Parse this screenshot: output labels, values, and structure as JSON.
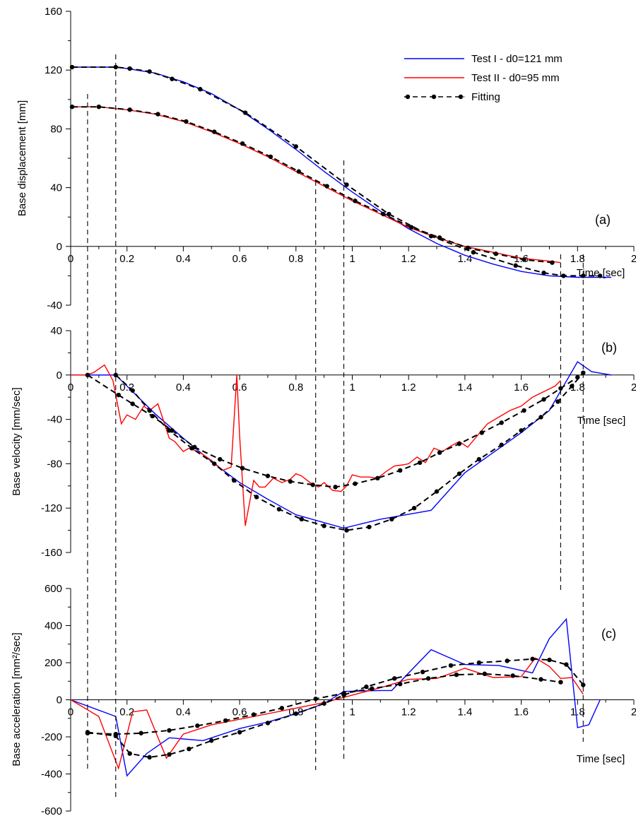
{
  "colors": {
    "test1": "#0000ff",
    "test2": "#ff0000",
    "fitting": "#000000"
  },
  "legend": [
    {
      "label": "Test I - d0=121 mm",
      "color": "#0000ff",
      "style": "solid"
    },
    {
      "label": "Test II - d0=95 mm",
      "color": "#ff0000",
      "style": "solid"
    },
    {
      "label": "Fitting",
      "color": "#000000",
      "style": "dashed-dots"
    }
  ],
  "event_times": [
    0.06,
    0.16,
    0.87,
    0.97,
    1.74,
    1.82
  ],
  "chart_data": [
    {
      "type": "line",
      "panel": "(a)",
      "ylabel": "Base displacement [mm]",
      "xlabel": "Time [sec]",
      "xlim": [
        0,
        2
      ],
      "ylim": [
        -40,
        160
      ],
      "xticks": [
        "0",
        "0.2",
        "0.4",
        "0.6",
        "0.8",
        "1",
        "1.2",
        "1.4",
        "1.6",
        "1.8",
        "2"
      ],
      "yticks": [
        "-40",
        "0",
        "40",
        "80",
        "120",
        "160"
      ],
      "series": [
        {
          "name": "Test I - d0=121 mm",
          "color": "#0000ff",
          "x": [
            0,
            0.16,
            0.2,
            0.3,
            0.4,
            0.5,
            0.6,
            0.7,
            0.8,
            0.9,
            1.0,
            1.1,
            1.2,
            1.3,
            1.4,
            1.5,
            1.6,
            1.7,
            1.8,
            1.9,
            1.92
          ],
          "y": [
            122,
            122,
            121,
            118,
            112,
            104,
            93,
            80,
            66,
            51,
            37,
            24,
            12,
            2,
            -6,
            -12,
            -17,
            -20,
            -21,
            -21,
            -21
          ]
        },
        {
          "name": "Test II - d0=95 mm",
          "color": "#ff0000",
          "x": [
            0,
            0.06,
            0.1,
            0.2,
            0.3,
            0.4,
            0.5,
            0.6,
            0.7,
            0.8,
            0.9,
            1.0,
            1.1,
            1.2,
            1.3,
            1.4,
            1.5,
            1.6,
            1.7,
            1.74
          ],
          "y": [
            95,
            95,
            95,
            93,
            90,
            85,
            78,
            70,
            61,
            51,
            41,
            31,
            22,
            13,
            6,
            0,
            -4,
            -8,
            -10,
            -11
          ]
        },
        {
          "name": "Fitting",
          "color": "#000000",
          "dashed": true,
          "x": [
            0.005,
            0.16,
            0.21,
            0.28,
            0.36,
            0.46,
            0.62,
            0.8,
            0.98,
            1.13,
            1.28,
            1.43,
            1.58,
            1.68,
            1.75,
            1.82,
            1.88
          ],
          "y": [
            122,
            122,
            121,
            119,
            114,
            107,
            91,
            68,
            42,
            22,
            7,
            -4,
            -13,
            -18,
            -20,
            -20,
            -20
          ]
        },
        {
          "name": "Fitting",
          "color": "#000000",
          "dashed": true,
          "x": [
            0.005,
            0.1,
            0.21,
            0.31,
            0.41,
            0.51,
            0.61,
            0.71,
            0.81,
            0.91,
            1.01,
            1.11,
            1.21,
            1.31,
            1.41,
            1.51,
            1.61,
            1.71
          ],
          "y": [
            95,
            95,
            93,
            90,
            85,
            78,
            70,
            61,
            51,
            41,
            31,
            22,
            13,
            6,
            -1,
            -5,
            -9,
            -11
          ]
        }
      ]
    },
    {
      "type": "line",
      "panel": "(b)",
      "ylabel": "Base velocity [mm/sec]",
      "xlabel": "Time [sec]",
      "xlim": [
        0,
        2
      ],
      "ylim": [
        -160,
        40
      ],
      "xticks": [
        "0",
        "0.2",
        "0.4",
        "0.6",
        "0.8",
        "1",
        "1.2",
        "1.4",
        "1.6",
        "1.8",
        "2"
      ],
      "yticks": [
        "-160",
        "-120",
        "-80",
        "-40",
        "0",
        "40"
      ],
      "series": [
        {
          "name": "Test I - d0=121 mm",
          "color": "#0000ff",
          "x": [
            0,
            0.16,
            0.22,
            0.3,
            0.4,
            0.5,
            0.6,
            0.7,
            0.8,
            0.97,
            1.1,
            1.28,
            1.4,
            1.5,
            1.6,
            1.7,
            1.8,
            1.85,
            1.92
          ],
          "y": [
            0,
            0,
            -15,
            -35,
            -57,
            -78,
            -97,
            -112,
            -126,
            -138,
            -130,
            -122,
            -88,
            -70,
            -52,
            -32,
            12,
            3,
            0
          ]
        },
        {
          "name": "Test II - d0=95 mm",
          "color": "#ff0000",
          "x": [
            0,
            0.05,
            0.08,
            0.12,
            0.15,
            0.18,
            0.2,
            0.23,
            0.26,
            0.28,
            0.31,
            0.35,
            0.37,
            0.4,
            0.42,
            0.46,
            0.5,
            0.54,
            0.57,
            0.59,
            0.6,
            0.62,
            0.65,
            0.67,
            0.69,
            0.72,
            0.75,
            0.78,
            0.8,
            0.82,
            0.85,
            0.88,
            0.9,
            0.93,
            0.96,
            0.98,
            1.0,
            1.03,
            1.06,
            1.09,
            1.12,
            1.15,
            1.18,
            1.2,
            1.23,
            1.26,
            1.29,
            1.32,
            1.35,
            1.38,
            1.41,
            1.44,
            1.48,
            1.52,
            1.56,
            1.6,
            1.64,
            1.68,
            1.72,
            1.74
          ],
          "y": [
            0,
            0,
            2,
            9,
            -5,
            -44,
            -36,
            -40,
            -28,
            -32,
            -26,
            -57,
            -60,
            -69,
            -66,
            -70,
            -77,
            -86,
            -83,
            0,
            -55,
            -136,
            -95,
            -101,
            -101,
            -93,
            -97,
            -94,
            -89,
            -91,
            -97,
            -101,
            -97,
            -104,
            -105,
            -100,
            -90,
            -92,
            -92,
            -93,
            -87,
            -82,
            -81,
            -80,
            -74,
            -79,
            -66,
            -69,
            -64,
            -60,
            -65,
            -56,
            -44,
            -38,
            -32,
            -28,
            -20,
            -15,
            -10,
            -5
          ]
        },
        {
          "name": "Fitting",
          "color": "#000000",
          "dashed": true,
          "x": [
            0.06,
            0.17,
            0.22,
            0.29,
            0.36,
            0.44,
            0.53,
            0.61,
            0.7,
            0.78,
            0.86,
            0.94,
            1.01,
            1.09,
            1.17,
            1.24,
            1.31,
            1.38,
            1.46,
            1.53,
            1.61,
            1.68,
            1.74,
            1.8
          ],
          "y": [
            0,
            -18,
            -26,
            -37,
            -50,
            -65,
            -76,
            -84,
            -91,
            -96,
            -99,
            -101,
            -98,
            -93,
            -86,
            -79,
            -70,
            -62,
            -52,
            -43,
            -32,
            -22,
            -12,
            -2
          ]
        },
        {
          "name": "Fitting",
          "color": "#000000",
          "dashed": true,
          "x": [
            0.16,
            0.22,
            0.28,
            0.35,
            0.43,
            0.51,
            0.58,
            0.66,
            0.74,
            0.82,
            0.9,
            0.98,
            1.06,
            1.14,
            1.22,
            1.3,
            1.38,
            1.45,
            1.53,
            1.6,
            1.67,
            1.73,
            1.78,
            1.82
          ],
          "y": [
            0,
            -14,
            -32,
            -50,
            -66,
            -80,
            -95,
            -110,
            -121,
            -130,
            -136,
            -140,
            -137,
            -130,
            -120,
            -105,
            -89,
            -76,
            -63,
            -50,
            -38,
            -24,
            -10,
            2
          ]
        }
      ]
    },
    {
      "type": "line",
      "panel": "(c)",
      "ylabel": "Base acceleration [mm²/sec]",
      "xlabel": "Time [sec]",
      "xlim": [
        0,
        2
      ],
      "ylim": [
        -600,
        600
      ],
      "xticks": [
        "0",
        "0.2",
        "0.4",
        "0.6",
        "0.8",
        "1",
        "1.2",
        "1.4",
        "1.6",
        "1.8",
        "2"
      ],
      "yticks": [
        "-600",
        "-400",
        "-200",
        "0",
        "200",
        "400",
        "600"
      ],
      "series": [
        {
          "name": "Test I - d0=121 mm",
          "color": "#0000ff",
          "x": [
            0,
            0.16,
            0.2,
            0.27,
            0.35,
            0.47,
            0.6,
            0.7,
            0.8,
            0.9,
            0.97,
            1.1,
            1.14,
            1.28,
            1.4,
            1.52,
            1.64,
            1.7,
            1.76,
            1.8,
            1.84,
            1.88
          ],
          "y": [
            0,
            -90,
            -410,
            -290,
            -205,
            -220,
            -155,
            -120,
            -75,
            -20,
            45,
            50,
            50,
            270,
            190,
            185,
            145,
            330,
            435,
            -150,
            -135,
            0
          ]
        },
        {
          "name": "Test II - d0=95 mm",
          "color": "#ff0000",
          "x": [
            0,
            0.1,
            0.17,
            0.22,
            0.27,
            0.34,
            0.4,
            0.5,
            0.6,
            0.7,
            0.8,
            0.9,
            1.0,
            1.1,
            1.2,
            1.3,
            1.4,
            1.5,
            1.6,
            1.65,
            1.7,
            1.74,
            1.78,
            1.82
          ],
          "y": [
            0,
            -90,
            -370,
            -65,
            -55,
            -315,
            -185,
            -135,
            -105,
            -75,
            -45,
            -15,
            25,
            65,
            110,
            115,
            170,
            120,
            125,
            225,
            180,
            115,
            120,
            30
          ]
        },
        {
          "name": "Fitting",
          "color": "#000000",
          "dashed": true,
          "x": [
            0.06,
            0.16,
            0.21,
            0.28,
            0.35,
            0.42,
            0.5,
            0.6,
            0.7,
            0.8,
            0.9,
            0.97,
            1.05,
            1.15,
            1.25,
            1.35,
            1.45,
            1.55,
            1.64,
            1.7,
            1.76,
            1.82
          ],
          "y": [
            -175,
            -195,
            -290,
            -310,
            -295,
            -265,
            -220,
            -175,
            -125,
            -75,
            -20,
            25,
            70,
            115,
            150,
            185,
            200,
            210,
            220,
            215,
            190,
            80
          ]
        },
        {
          "name": "Fitting",
          "color": "#000000",
          "dashed": true,
          "x": [
            0.06,
            0.16,
            0.25,
            0.35,
            0.45,
            0.55,
            0.65,
            0.75,
            0.87,
            0.97,
            1.07,
            1.17,
            1.27,
            1.37,
            1.47,
            1.57,
            1.67,
            1.74
          ],
          "y": [
            -180,
            -185,
            -180,
            -165,
            -140,
            -112,
            -80,
            -45,
            5,
            35,
            60,
            85,
            115,
            135,
            140,
            130,
            110,
            95
          ]
        }
      ]
    }
  ]
}
